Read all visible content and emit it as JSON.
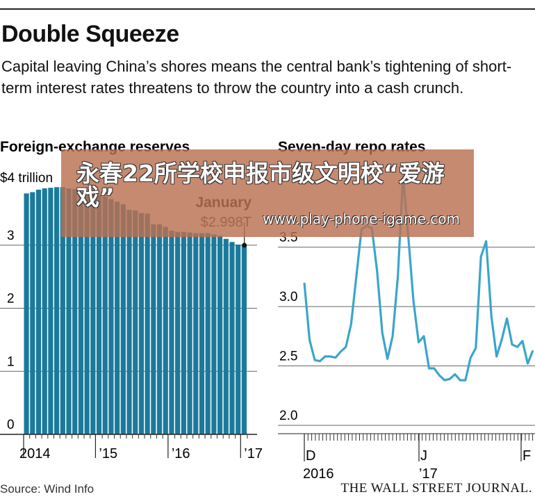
{
  "title": "Double Squeeze",
  "subtitle": "Capital leaving China’s shores means the central bank’s tightening of short-term interest rates threatens to throw the country into a cash crunch.",
  "source": "Source: Wind Info",
  "publisher": "THE WALL STREET JOURNAL.",
  "overlay": {
    "title": "永春22所学校申报市级文明校“爱游戏”",
    "url": "www.play-phone-igame.com"
  },
  "colors": {
    "bar": "#1b7a9c",
    "bar_dim": "#bcbcbc",
    "line": "#3aa5cc",
    "grid": "#555555"
  },
  "chart_data": [
    {
      "type": "bar",
      "title": "Foreign-exchange reserves",
      "unit_label": "$4 trillion",
      "annotation": {
        "label": "January",
        "value": "$2.998T"
      },
      "ylim": [
        0,
        4
      ],
      "yticks": [
        0,
        1,
        2,
        3
      ],
      "xticks": [
        "2014",
        "’15",
        "’16",
        "’17"
      ],
      "grid": true,
      "values": [
        3.82,
        3.84,
        3.88,
        3.9,
        3.91,
        3.92,
        3.92,
        3.9,
        3.89,
        3.84,
        3.85,
        3.84,
        3.8,
        3.77,
        3.73,
        3.69,
        3.65,
        3.56,
        3.55,
        3.51,
        3.5,
        3.33,
        3.33,
        3.29,
        3.23,
        3.21,
        3.21,
        3.2,
        3.19,
        3.19,
        3.19,
        3.17,
        3.15,
        3.1,
        3.05,
        3.01,
        2.998
      ]
    },
    {
      "type": "line",
      "title": "Seven-day repo rates",
      "ylim": [
        2.0,
        4.2
      ],
      "yticks": [
        2.0,
        2.5,
        3.0,
        3.5
      ],
      "xticks": [
        "D",
        "J",
        "F"
      ],
      "xsublabels": [
        "2016",
        "’17"
      ],
      "grid": true,
      "values": [
        3.2,
        2.72,
        2.55,
        2.54,
        2.58,
        2.58,
        2.57,
        2.62,
        2.66,
        2.85,
        3.25,
        3.65,
        3.68,
        3.66,
        3.3,
        2.78,
        2.56,
        2.75,
        3.25,
        4.1,
        3.6,
        3.05,
        2.7,
        2.75,
        2.48,
        2.48,
        2.42,
        2.38,
        2.39,
        2.43,
        2.38,
        2.38,
        2.57,
        2.65,
        3.42,
        3.55,
        2.92,
        2.58,
        2.72,
        2.9,
        2.68,
        2.66,
        2.71,
        2.52,
        2.63
      ]
    }
  ]
}
